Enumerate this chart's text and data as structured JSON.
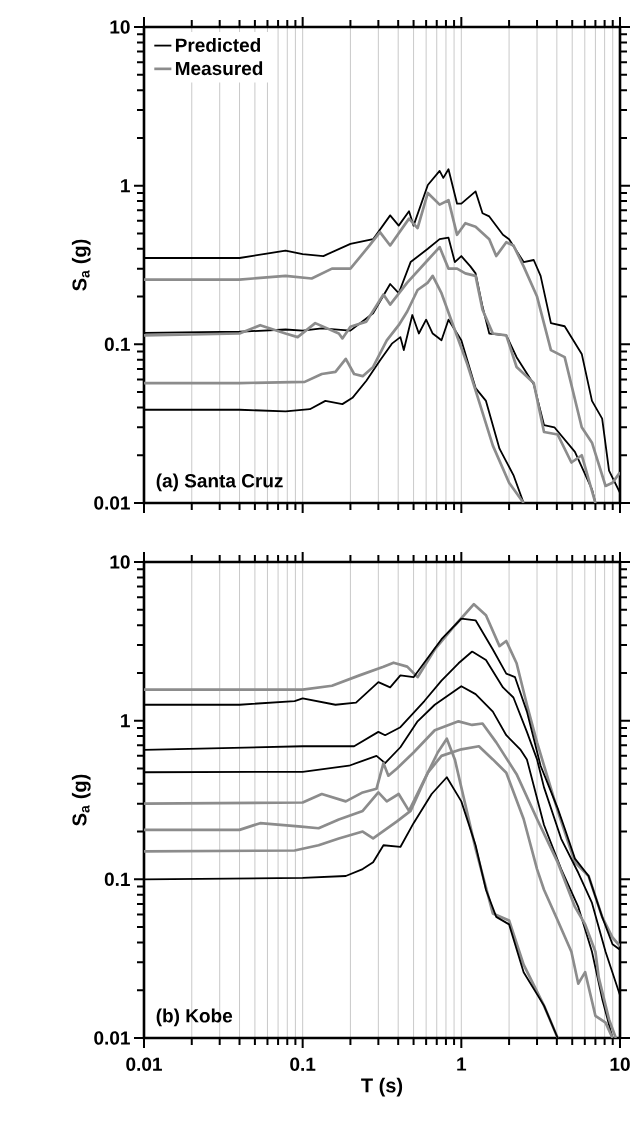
{
  "chart_data": [
    {
      "type": "line",
      "log": "xy",
      "grid": "x",
      "legend": "top left",
      "tick_labels": "y",
      "xlim": [
        0.01,
        10
      ],
      "ylim": [
        0.01,
        10
      ],
      "xticks": [
        0.01,
        0.1,
        1,
        10
      ],
      "yticks": [
        0.01,
        0.1,
        1,
        10
      ],
      "ylabel": "S$_{a}$ (g)",
      "annotations": [
        "(a) Santa Cruz"
      ],
      "series": [
        {
          "name": "Predicted",
          "color": "#000000",
          "x": [
            0.01,
            0.04,
            0.078,
            0.1,
            0.135,
            0.2,
            0.278,
            0.356,
            0.403,
            0.468,
            0.5,
            0.615,
            0.73,
            0.77,
            0.83,
            0.94,
            1.0,
            1.23,
            1.36,
            1.5,
            1.83,
            2.0,
            2.47,
            2.86,
            3.16,
            3.67,
            4.48,
            5.74,
            6.66,
            7.72,
            8.53,
            10
          ],
          "values": [
            0.35,
            0.35,
            0.39,
            0.37,
            0.36,
            0.43,
            0.46,
            0.65,
            0.56,
            0.69,
            0.56,
            1.01,
            1.24,
            1.12,
            1.27,
            0.77,
            0.77,
            0.92,
            0.67,
            0.64,
            0.49,
            0.46,
            0.33,
            0.34,
            0.27,
            0.136,
            0.13,
            0.087,
            0.044,
            0.034,
            0.016,
            0.0116
          ]
        },
        {
          "name": "Measured",
          "color": "#8c8c8c",
          "x": [
            0.01,
            0.04,
            0.078,
            0.114,
            0.153,
            0.2,
            0.264,
            0.307,
            0.356,
            0.468,
            0.53,
            0.615,
            0.73,
            0.83,
            0.94,
            1.06,
            1.23,
            1.5,
            1.66,
            1.92,
            2.13,
            2.47,
            3.0,
            3.67,
            4.48,
            5.74,
            6.66,
            8.11,
            8.97,
            10
          ],
          "values": [
            0.256,
            0.256,
            0.27,
            0.26,
            0.3,
            0.3,
            0.42,
            0.51,
            0.42,
            0.62,
            0.54,
            0.9,
            0.76,
            0.81,
            0.49,
            0.58,
            0.55,
            0.46,
            0.36,
            0.44,
            0.42,
            0.31,
            0.2,
            0.092,
            0.083,
            0.03,
            0.024,
            0.0128,
            0.0134,
            0.0156
          ]
        },
        {
          "color": "#000000",
          "x": [
            0.01,
            0.04,
            0.078,
            0.1,
            0.132,
            0.2,
            0.278,
            0.356,
            0.403,
            0.479,
            0.615,
            0.73,
            0.83,
            0.91,
            1.0,
            1.14,
            1.23,
            1.36,
            1.5,
            1.92,
            2.23,
            2.86,
            3.32,
            3.86,
            5.2,
            6.66,
            7.0
          ],
          "values": [
            0.118,
            0.12,
            0.124,
            0.122,
            0.126,
            0.122,
            0.157,
            0.24,
            0.21,
            0.33,
            0.4,
            0.46,
            0.47,
            0.33,
            0.36,
            0.31,
            0.28,
            0.173,
            0.117,
            0.114,
            0.083,
            0.056,
            0.031,
            0.03,
            0.021,
            0.0122,
            0.01
          ]
        },
        {
          "color": "#8c8c8c",
          "x": [
            0.01,
            0.04,
            0.054,
            0.078,
            0.093,
            0.12,
            0.169,
            0.178,
            0.2,
            0.252,
            0.323,
            0.356,
            0.456,
            0.615,
            0.73,
            0.83,
            0.94,
            1.06,
            1.23,
            1.36,
            1.58,
            1.92,
            2.23,
            2.86,
            3.32,
            4.05,
            4.94,
            5.74,
            7.0
          ],
          "values": [
            0.114,
            0.117,
            0.132,
            0.117,
            0.111,
            0.136,
            0.117,
            0.109,
            0.129,
            0.139,
            0.206,
            0.178,
            0.245,
            0.34,
            0.41,
            0.3,
            0.3,
            0.28,
            0.27,
            0.165,
            0.117,
            0.114,
            0.072,
            0.057,
            0.028,
            0.027,
            0.018,
            0.02,
            0.01
          ]
        },
        {
          "color": "#000000",
          "x": [
            0.01,
            0.04,
            0.078,
            0.111,
            0.139,
            0.178,
            0.206,
            0.252,
            0.307,
            0.365,
            0.413,
            0.434,
            0.491,
            0.54,
            0.6,
            0.66,
            0.75,
            0.83,
            1.0,
            1.23,
            1.43,
            1.74,
            2.13,
            2.47
          ],
          "values": [
            0.0387,
            0.0387,
            0.0378,
            0.039,
            0.044,
            0.042,
            0.046,
            0.059,
            0.079,
            0.101,
            0.111,
            0.092,
            0.153,
            0.117,
            0.143,
            0.117,
            0.106,
            0.143,
            0.106,
            0.053,
            0.044,
            0.022,
            0.015,
            0.01
          ]
        },
        {
          "color": "#8c8c8c",
          "x": [
            0.01,
            0.04,
            0.103,
            0.132,
            0.161,
            0.187,
            0.211,
            0.239,
            0.278,
            0.339,
            0.403,
            0.456,
            0.53,
            0.615,
            0.66,
            0.75,
            0.91,
            1.09,
            1.29,
            1.58,
            2.0,
            2.47
          ],
          "values": [
            0.057,
            0.057,
            0.058,
            0.065,
            0.067,
            0.081,
            0.065,
            0.063,
            0.072,
            0.106,
            0.132,
            0.161,
            0.22,
            0.245,
            0.27,
            0.21,
            0.123,
            0.075,
            0.044,
            0.023,
            0.0134,
            0.01
          ]
        }
      ]
    },
    {
      "type": "line",
      "log": "xy",
      "grid": "x",
      "xlim": [
        0.01,
        10
      ],
      "ylim": [
        0.01,
        10
      ],
      "xticks": [
        0.01,
        0.1,
        1,
        10
      ],
      "yticks": [
        0.01,
        0.1,
        1,
        10
      ],
      "xlabel": "T (s)",
      "ylabel": "S$_{a}$ (g)",
      "annotations": [
        "(b) Kobe"
      ],
      "series": [
        {
          "color": "#8c8c8c",
          "x": [
            0.01,
            0.1,
            0.153,
            0.228,
            0.323,
            0.374,
            0.456,
            0.53,
            0.68,
            0.91,
            1.2,
            1.43,
            1.74,
            1.92,
            2.23,
            2.59,
            3.0,
            4.05,
            5.2,
            6.34,
            7.72,
            8.97,
            10
          ],
          "values": [
            1.57,
            1.57,
            1.66,
            1.93,
            2.19,
            2.32,
            2.19,
            1.88,
            2.81,
            3.98,
            5.42,
            4.62,
            2.95,
            3.18,
            2.3,
            1.26,
            0.73,
            0.27,
            0.128,
            0.105,
            0.058,
            0.043,
            0.038
          ]
        },
        {
          "color": "#000000",
          "x": [
            0.01,
            0.04,
            0.089,
            0.1,
            0.161,
            0.217,
            0.3,
            0.356,
            0.413,
            0.5,
            0.75,
            1.0,
            1.23,
            1.58,
            1.92,
            2.18,
            2.59,
            3.16,
            4.05,
            4.48,
            5.2,
            6.34,
            7.72,
            8.97,
            10
          ],
          "values": [
            1.26,
            1.26,
            1.33,
            1.38,
            1.26,
            1.3,
            1.75,
            1.62,
            1.93,
            1.88,
            3.26,
            4.4,
            4.29,
            2.81,
            1.98,
            1.88,
            1.14,
            0.52,
            0.28,
            0.21,
            0.135,
            0.105,
            0.058,
            0.039,
            0.036
          ]
        },
        {
          "color": "#000000",
          "x": [
            0.01,
            0.1,
            0.211,
            0.3,
            0.331,
            0.413,
            0.585,
            0.75,
            0.96,
            1.17,
            1.43,
            1.83,
            2.13,
            2.59,
            3.0,
            3.32,
            4.26,
            5.46,
            6.66,
            8.11,
            10
          ],
          "values": [
            0.655,
            0.69,
            0.69,
            0.85,
            0.81,
            0.91,
            1.33,
            1.79,
            2.3,
            2.73,
            2.41,
            1.62,
            1.4,
            0.85,
            0.57,
            0.38,
            0.18,
            0.11,
            0.071,
            0.035,
            0.0186
          ]
        },
        {
          "color": "#000000",
          "x": [
            0.01,
            0.1,
            0.196,
            0.292,
            0.331,
            0.413,
            0.53,
            0.68,
            1.0,
            1.23,
            1.58,
            1.92,
            2.35,
            2.59,
            3.32,
            4.26,
            5.46,
            6.66,
            7.72,
            8.97
          ],
          "values": [
            0.473,
            0.476,
            0.52,
            0.6,
            0.54,
            0.68,
            0.99,
            1.26,
            1.65,
            1.47,
            1.14,
            0.81,
            0.66,
            0.57,
            0.22,
            0.116,
            0.067,
            0.035,
            0.0177,
            0.01
          ]
        },
        {
          "color": "#8c8c8c",
          "x": [
            0.01,
            0.1,
            0.132,
            0.187,
            0.239,
            0.292,
            0.323,
            0.347,
            0.393,
            0.5,
            0.68,
            0.96,
            1.17,
            1.36,
            1.66,
            2.23,
            3.0,
            4.05,
            5.2,
            6.03,
            7.0,
            7.35,
            8.53,
            9.42
          ],
          "values": [
            0.3,
            0.305,
            0.345,
            0.31,
            0.353,
            0.372,
            0.54,
            0.45,
            0.5,
            0.63,
            0.87,
            0.99,
            0.94,
            0.96,
            0.73,
            0.46,
            0.24,
            0.128,
            0.067,
            0.052,
            0.035,
            0.024,
            0.0131,
            0.01
          ]
        },
        {
          "color": "#8c8c8c",
          "x": [
            0.01,
            0.04,
            0.054,
            0.098,
            0.126,
            0.169,
            0.239,
            0.3,
            0.339,
            0.403,
            0.468,
            0.615,
            0.75,
            1.0,
            1.29,
            1.58,
            1.92,
            2.47,
            3.0,
            3.32,
            4.05,
            4.94,
            5.46,
            6.03,
            7.0,
            8.11,
            8.97
          ],
          "values": [
            0.205,
            0.205,
            0.226,
            0.215,
            0.21,
            0.238,
            0.27,
            0.353,
            0.31,
            0.345,
            0.27,
            0.47,
            0.6,
            0.66,
            0.69,
            0.57,
            0.47,
            0.24,
            0.116,
            0.086,
            0.055,
            0.035,
            0.022,
            0.026,
            0.0138,
            0.0125,
            0.01
          ]
        },
        {
          "color": "#8c8c8c",
          "x": [
            0.01,
            0.089,
            0.126,
            0.169,
            0.239,
            0.278,
            0.393,
            0.479,
            0.615,
            0.71,
            0.81,
            0.91,
            1.23,
            1.58,
            2.0,
            2.47,
            3.32,
            4.05
          ],
          "values": [
            0.15,
            0.152,
            0.164,
            0.181,
            0.2,
            0.181,
            0.232,
            0.27,
            0.47,
            0.63,
            0.77,
            0.57,
            0.156,
            0.061,
            0.055,
            0.029,
            0.016,
            0.01
          ]
        },
        {
          "color": "#000000",
          "x": [
            0.01,
            0.1,
            0.187,
            0.239,
            0.278,
            0.323,
            0.413,
            0.5,
            0.65,
            0.81,
            1.0,
            1.23,
            1.43,
            1.66,
            2.0,
            2.47,
            3.32,
            4.05
          ],
          "values": [
            0.1,
            0.102,
            0.105,
            0.116,
            0.128,
            0.164,
            0.16,
            0.226,
            0.345,
            0.44,
            0.31,
            0.164,
            0.086,
            0.058,
            0.052,
            0.026,
            0.016,
            0.01
          ]
        }
      ]
    }
  ]
}
